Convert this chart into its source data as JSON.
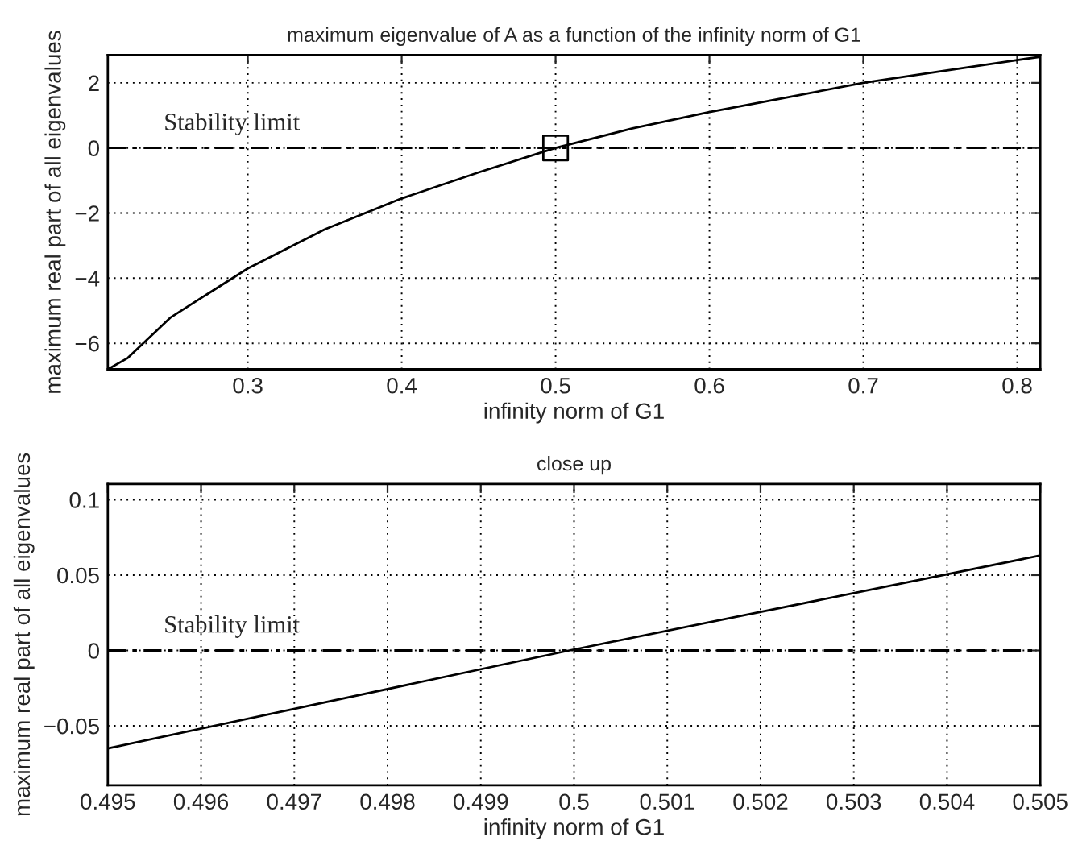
{
  "chart_data": [
    {
      "type": "line",
      "title": "maximum eigenvalue of A as a function of the infinity norm of G1",
      "xlabel": "infinity norm of G1",
      "ylabel": "maximum real part of all eigenvalues",
      "series": [
        {
          "color": "#000000",
          "x": [
            0.209,
            0.222,
            0.25,
            0.3,
            0.35,
            0.4,
            0.45,
            0.5,
            0.55,
            0.6,
            0.65,
            0.7,
            0.75,
            0.8,
            0.815
          ],
          "values": [
            -6.8,
            -6.45,
            -5.2,
            -3.7,
            -2.5,
            -1.55,
            -0.75,
            0,
            0.6,
            1.1,
            1.55,
            2.0,
            2.35,
            2.7,
            2.8
          ]
        },
        {
          "type": "scatter",
          "color": "#000000",
          "marker": "square",
          "x": [
            0.5
          ],
          "values": [
            0
          ]
        }
      ],
      "ref_lines": [
        {
          "axis": "y",
          "value": 0,
          "label": "Stability limit",
          "line_style": "dashdot"
        }
      ],
      "xlim": [
        0.209,
        0.815
      ],
      "ylim": [
        -6.8,
        2.85
      ],
      "xticks": [
        0.3,
        0.4,
        0.5,
        0.6,
        0.7,
        0.8
      ],
      "yticks": [
        {
          "value": -6,
          "label": "−6"
        },
        {
          "value": -4,
          "label": "−4"
        },
        {
          "value": -2,
          "label": "−2"
        },
        0,
        2
      ],
      "grid": true,
      "line_style": "solid"
    },
    {
      "type": "line",
      "title": "close up",
      "xlabel": "infinity norm of G1",
      "ylabel": "maximum real part of all eigenvalues",
      "series": [
        {
          "color": "#000000",
          "x": [
            0.495,
            0.49995,
            0.505
          ],
          "values": [
            -0.065,
            0,
            0.063
          ]
        }
      ],
      "ref_lines": [
        {
          "axis": "y",
          "value": 0,
          "label": "Stability limit",
          "line_style": "dashdot"
        }
      ],
      "xlim": [
        0.495,
        0.505
      ],
      "ylim": [
        -0.0895,
        0.1105
      ],
      "xticks": [
        0.495,
        0.496,
        0.497,
        0.498,
        0.499,
        0.5,
        0.501,
        0.502,
        0.503,
        0.504,
        0.505
      ],
      "yticks": [
        {
          "value": -0.05,
          "label": "−0.05"
        },
        0,
        0.05,
        0.1
      ],
      "grid": true,
      "line_style": "solid"
    }
  ]
}
